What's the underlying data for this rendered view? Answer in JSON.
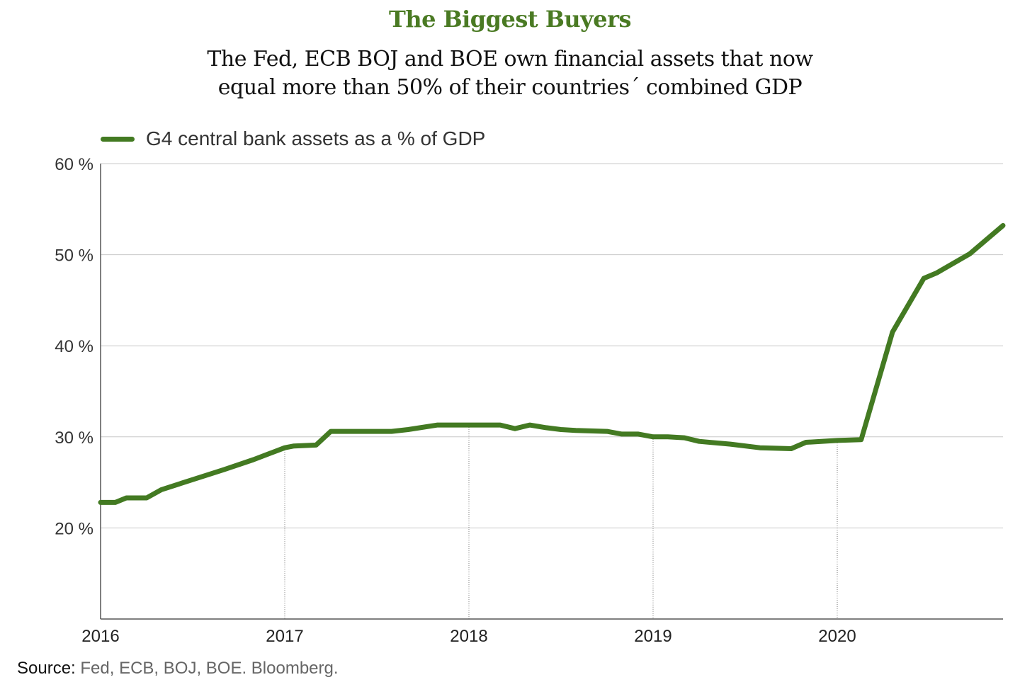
{
  "header": {
    "title": "The Biggest Buyers",
    "subtitle_line1": "The Fed, ECB BOJ and BOE own financial assets that now",
    "subtitle_line2": "equal more than 50% of their countries´ combined GDP"
  },
  "colors": {
    "accent": "#4a7a23",
    "series": "#437a22",
    "grid": "#c8c8c8",
    "axis": "#555555"
  },
  "footer": {
    "source_label": "Source:",
    "source_text": "Fed, ECB, BOJ, BOE. Bloomberg."
  },
  "chart_data": {
    "type": "line",
    "title": "",
    "xlabel": "",
    "ylabel": "",
    "xlim": [
      2016.0,
      2020.9
    ],
    "ylim": [
      10,
      60
    ],
    "y_ticks": [
      20,
      30,
      40,
      50,
      60
    ],
    "y_tick_labels": [
      "20 %",
      "30 %",
      "40 %",
      "50 %",
      "60 %"
    ],
    "x_ticks": [
      2016,
      2017,
      2018,
      2019,
      2020
    ],
    "x_tick_labels": [
      "2016",
      "2017",
      "2018",
      "2019",
      "2020"
    ],
    "grid": "horizontal",
    "legend_position": "top-left",
    "series": [
      {
        "name": "G4 central bank assets as a % of GDP",
        "x": [
          2016.0,
          2016.08,
          2016.14,
          2016.25,
          2016.33,
          2016.5,
          2016.67,
          2016.83,
          2017.0,
          2017.05,
          2017.17,
          2017.25,
          2017.42,
          2017.58,
          2017.67,
          2017.83,
          2018.0,
          2018.17,
          2018.25,
          2018.33,
          2018.42,
          2018.5,
          2018.58,
          2018.75,
          2018.83,
          2018.92,
          2019.0,
          2019.08,
          2019.17,
          2019.25,
          2019.42,
          2019.58,
          2019.75,
          2019.83,
          2020.0,
          2020.13,
          2020.3,
          2020.47,
          2020.54,
          2020.72,
          2020.9
        ],
        "y": [
          22.8,
          22.8,
          23.3,
          23.3,
          24.2,
          25.3,
          26.4,
          27.5,
          28.8,
          29.0,
          29.1,
          30.6,
          30.6,
          30.6,
          30.8,
          31.3,
          31.3,
          31.3,
          30.9,
          31.3,
          31.0,
          30.8,
          30.7,
          30.6,
          30.3,
          30.3,
          30.0,
          30.0,
          29.9,
          29.5,
          29.2,
          28.8,
          28.7,
          29.4,
          29.6,
          29.7,
          41.5,
          47.4,
          48.0,
          50.1,
          53.2
        ]
      }
    ]
  }
}
